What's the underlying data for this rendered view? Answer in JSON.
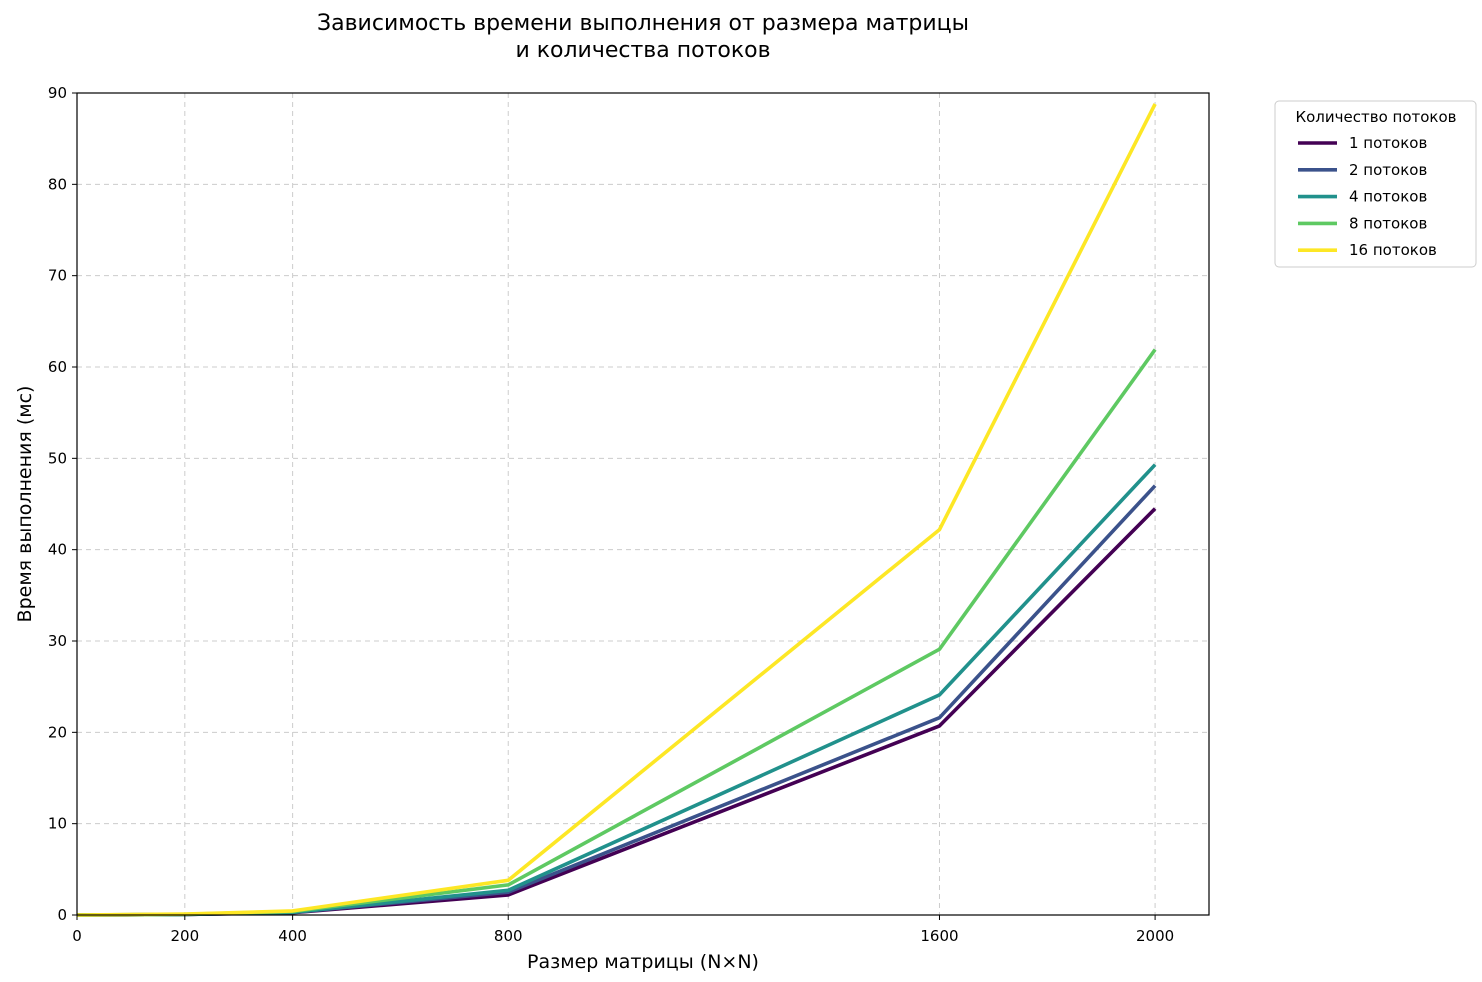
{
  "chart_data": {
    "type": "line",
    "title_lines": [
      "Зависимость времени выполнения от размера матрицы",
      "и количества потоков"
    ],
    "xlabel": "Размер матрицы (N×N)",
    "ylabel": "Время выполнения (мс)",
    "x": [
      0,
      200,
      400,
      800,
      1600,
      2000
    ],
    "xticks": [
      0,
      200,
      400,
      800,
      1600,
      2000
    ],
    "yticks": [
      0,
      10,
      20,
      30,
      40,
      50,
      60,
      70,
      80,
      90
    ],
    "xlim": [
      0,
      2100
    ],
    "ylim": [
      0,
      90
    ],
    "grid": true,
    "legend": {
      "title": "Количество потоков",
      "placement": "outside-right-top"
    },
    "series": [
      {
        "name": "1 потоков",
        "color": "#440154",
        "values": [
          0.0,
          0.05,
          0.25,
          2.2,
          20.7,
          44.5
        ]
      },
      {
        "name": "2 потоков",
        "color": "#3b528b",
        "values": [
          0.0,
          0.05,
          0.27,
          2.5,
          21.6,
          47.0
        ]
      },
      {
        "name": "4 потоков",
        "color": "#21918c",
        "values": [
          0.0,
          0.06,
          0.3,
          2.7,
          24.1,
          49.3
        ]
      },
      {
        "name": "8 потоков",
        "color": "#5ec962",
        "values": [
          0.0,
          0.08,
          0.38,
          3.3,
          29.1,
          61.9
        ]
      },
      {
        "name": "16 потоков",
        "color": "#fde725",
        "values": [
          0.0,
          0.1,
          0.45,
          3.8,
          42.2,
          88.8
        ]
      }
    ]
  }
}
